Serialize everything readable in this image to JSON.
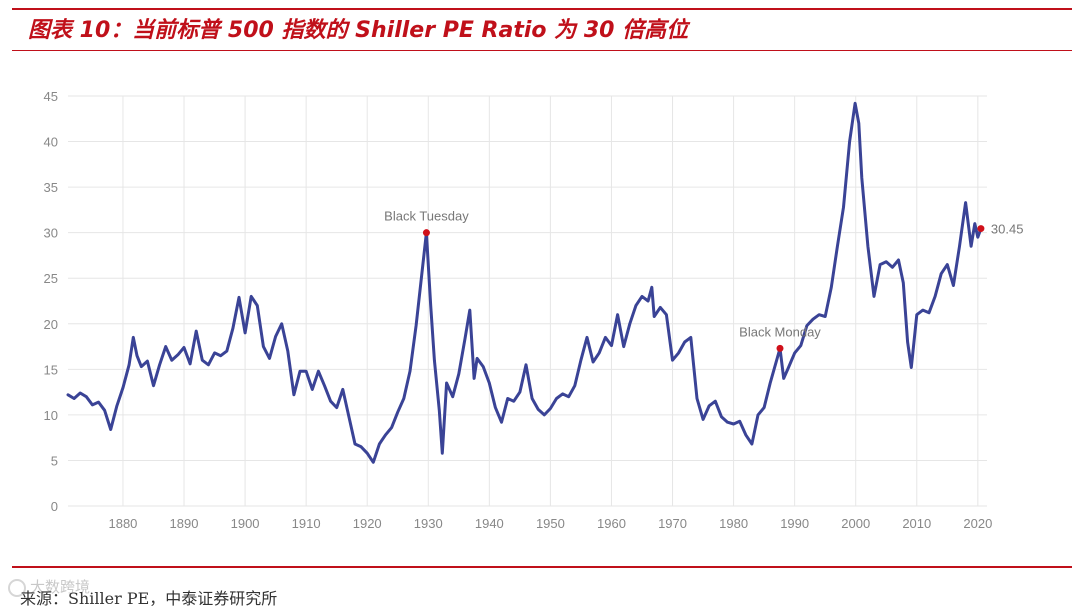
{
  "title": "图表 10：当前标普 500 指数的 Shiller PE Ratio 为 30 倍高位",
  "source": "来源：Shiller PE，中泰证券研究所",
  "watermark": "大数跨境",
  "colors": {
    "accent": "#c0101a",
    "line": "#3a4396",
    "marker": "#d0101a",
    "grid": "#e6e6e6",
    "tick_text": "#888888"
  },
  "chart_data": {
    "type": "line",
    "xlim": [
      1871,
      2021.5
    ],
    "ylim": [
      0,
      45
    ],
    "grid": true,
    "x_ticks": [
      1880,
      1890,
      1900,
      1910,
      1920,
      1930,
      1940,
      1950,
      1960,
      1970,
      1980,
      1990,
      2000,
      2010,
      2020
    ],
    "y_ticks": [
      0,
      5,
      10,
      15,
      20,
      25,
      30,
      35,
      40,
      45
    ],
    "series": [
      {
        "points": [
          [
            1871,
            12.2
          ],
          [
            1872,
            11.8
          ],
          [
            1873,
            12.4
          ],
          [
            1874,
            12.0
          ],
          [
            1875,
            11.1
          ],
          [
            1876,
            11.4
          ],
          [
            1877,
            10.5
          ],
          [
            1878,
            8.4
          ],
          [
            1879,
            11.0
          ],
          [
            1880,
            13.0
          ],
          [
            1881,
            15.5
          ],
          [
            1881.7,
            18.5
          ],
          [
            1882.3,
            16.5
          ],
          [
            1883,
            15.3
          ],
          [
            1884,
            15.9
          ],
          [
            1885,
            13.2
          ],
          [
            1886,
            15.5
          ],
          [
            1887,
            17.5
          ],
          [
            1888,
            16.0
          ],
          [
            1889,
            16.6
          ],
          [
            1890,
            17.4
          ],
          [
            1891,
            15.6
          ],
          [
            1892,
            19.2
          ],
          [
            1893,
            16.0
          ],
          [
            1894,
            15.5
          ],
          [
            1895,
            16.8
          ],
          [
            1896,
            16.5
          ],
          [
            1897,
            17.0
          ],
          [
            1898,
            19.5
          ],
          [
            1899,
            22.9
          ],
          [
            1900,
            19.0
          ],
          [
            1901,
            23.0
          ],
          [
            1902,
            22.0
          ],
          [
            1903,
            17.5
          ],
          [
            1904,
            16.2
          ],
          [
            1905,
            18.6
          ],
          [
            1906,
            20.0
          ],
          [
            1907,
            17.0
          ],
          [
            1908,
            12.2
          ],
          [
            1909,
            14.8
          ],
          [
            1910,
            14.8
          ],
          [
            1911,
            12.8
          ],
          [
            1912,
            14.8
          ],
          [
            1913,
            13.2
          ],
          [
            1914,
            11.5
          ],
          [
            1915,
            10.8
          ],
          [
            1916,
            12.8
          ],
          [
            1917,
            9.8
          ],
          [
            1918,
            6.8
          ],
          [
            1919,
            6.5
          ],
          [
            1920,
            5.8
          ],
          [
            1921,
            4.8
          ],
          [
            1922,
            6.8
          ],
          [
            1923,
            7.8
          ],
          [
            1924,
            8.6
          ],
          [
            1925,
            10.3
          ],
          [
            1926,
            11.8
          ],
          [
            1927,
            14.8
          ],
          [
            1928,
            19.8
          ],
          [
            1929.7,
            30.0
          ],
          [
            1930.4,
            22.0
          ],
          [
            1931,
            16.0
          ],
          [
            1931.8,
            10.5
          ],
          [
            1932.3,
            5.8
          ],
          [
            1933,
            13.5
          ],
          [
            1934,
            12.0
          ],
          [
            1935,
            14.5
          ],
          [
            1936,
            18.3
          ],
          [
            1936.8,
            21.5
          ],
          [
            1937.5,
            14.0
          ],
          [
            1938,
            16.2
          ],
          [
            1939,
            15.3
          ],
          [
            1940,
            13.5
          ],
          [
            1941,
            10.8
          ],
          [
            1942,
            9.2
          ],
          [
            1943,
            11.8
          ],
          [
            1944,
            11.5
          ],
          [
            1945,
            12.5
          ],
          [
            1946,
            15.5
          ],
          [
            1947,
            11.8
          ],
          [
            1948,
            10.6
          ],
          [
            1949,
            10.0
          ],
          [
            1950,
            10.7
          ],
          [
            1951,
            11.8
          ],
          [
            1952,
            12.3
          ],
          [
            1953,
            12.0
          ],
          [
            1954,
            13.2
          ],
          [
            1955,
            16.0
          ],
          [
            1956,
            18.5
          ],
          [
            1957,
            15.8
          ],
          [
            1958,
            16.8
          ],
          [
            1959,
            18.5
          ],
          [
            1960,
            17.6
          ],
          [
            1961,
            21.0
          ],
          [
            1962,
            17.5
          ],
          [
            1963,
            20.0
          ],
          [
            1964,
            22.0
          ],
          [
            1965,
            23.0
          ],
          [
            1966,
            22.5
          ],
          [
            1966.6,
            24.0
          ],
          [
            1967,
            20.8
          ],
          [
            1968,
            21.8
          ],
          [
            1969,
            21.0
          ],
          [
            1970,
            16.0
          ],
          [
            1971,
            16.8
          ],
          [
            1972,
            18.0
          ],
          [
            1973,
            18.5
          ],
          [
            1974,
            11.8
          ],
          [
            1975,
            9.5
          ],
          [
            1976,
            11.0
          ],
          [
            1977,
            11.5
          ],
          [
            1978,
            9.8
          ],
          [
            1979,
            9.2
          ],
          [
            1980,
            9.0
          ],
          [
            1981,
            9.3
          ],
          [
            1982,
            7.8
          ],
          [
            1983,
            6.8
          ],
          [
            1984,
            10.0
          ],
          [
            1985,
            10.8
          ],
          [
            1986,
            13.5
          ],
          [
            1987.6,
            17.3
          ],
          [
            1988.2,
            14.0
          ],
          [
            1989,
            15.2
          ],
          [
            1990,
            16.8
          ],
          [
            1991,
            17.6
          ],
          [
            1992,
            19.8
          ],
          [
            1993,
            20.5
          ],
          [
            1994,
            21.0
          ],
          [
            1995,
            20.8
          ],
          [
            1996,
            24.0
          ],
          [
            1997,
            28.5
          ],
          [
            1998,
            32.8
          ],
          [
            1999,
            40.0
          ],
          [
            1999.9,
            44.2
          ],
          [
            2000.5,
            42.0
          ],
          [
            2001,
            36.0
          ],
          [
            2002,
            28.5
          ],
          [
            2003,
            23.0
          ],
          [
            2004,
            26.5
          ],
          [
            2005,
            26.8
          ],
          [
            2006,
            26.2
          ],
          [
            2007,
            27.0
          ],
          [
            2007.8,
            24.5
          ],
          [
            2008.5,
            18.0
          ],
          [
            2009.1,
            15.2
          ],
          [
            2010,
            21.0
          ],
          [
            2011,
            21.5
          ],
          [
            2012,
            21.2
          ],
          [
            2013,
            23.0
          ],
          [
            2014,
            25.5
          ],
          [
            2015,
            26.5
          ],
          [
            2016,
            24.2
          ],
          [
            2017,
            28.5
          ],
          [
            2018,
            33.3
          ],
          [
            2018.9,
            28.5
          ],
          [
            2019.5,
            31.0
          ],
          [
            2020,
            29.5
          ],
          [
            2020.5,
            30.45
          ]
        ]
      }
    ],
    "annotations": [
      {
        "label": "Black Tuesday",
        "x": 1929.7,
        "y": 30.0
      },
      {
        "label": "Black Monday",
        "x": 1987.6,
        "y": 17.3
      },
      {
        "label": "30.45",
        "x": 2020.5,
        "y": 30.45
      }
    ]
  }
}
